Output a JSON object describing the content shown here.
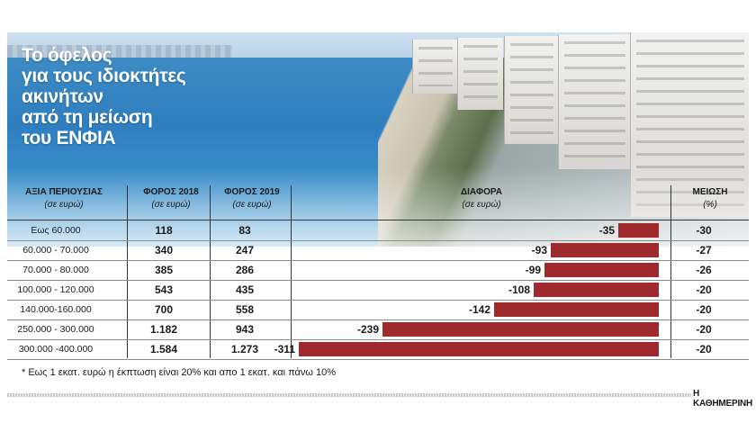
{
  "title_lines": [
    "Το όφελος",
    "για τους ιδιοκτήτες",
    "ακινήτων",
    "από τη μείωση",
    "του ΕΝΦΙΑ"
  ],
  "columns": {
    "value": {
      "label": "ΑΞΙΑ ΠΕΡΙΟΥΣΙΑΣ",
      "unit": "(σε ευρώ)"
    },
    "tax2018": {
      "label": "ΦΟΡΟΣ 2018",
      "unit": "(σε ευρώ)"
    },
    "tax2019": {
      "label": "ΦΟΡΟΣ 2019",
      "unit": "(σε ευρώ)"
    },
    "difference": {
      "label": "ΔΙΑΦΟΡΑ",
      "unit": "(σε ευρώ)"
    },
    "reduction": {
      "label": "ΜΕΙΩΣΗ",
      "unit": "(%)"
    }
  },
  "bar_color": "#9e2a2e",
  "chart_data": {
    "type": "table",
    "categories": [
      "Εως 60.000",
      "60.000 - 70.000",
      "70.000 - 80.000",
      "100.000 - 120.000",
      "140.000-160.000",
      "250.000 - 300.000",
      "300.000 -400.000"
    ],
    "tax2018": [
      "118",
      "340",
      "385",
      "543",
      "700",
      "1.182",
      "1.584"
    ],
    "tax2019": [
      "83",
      "247",
      "286",
      "435",
      "558",
      "943",
      "1.273"
    ],
    "difference": [
      -35,
      -93,
      -99,
      -108,
      -142,
      -239,
      -311
    ],
    "reduction": [
      "-30",
      "-27",
      "-26",
      "-20",
      "-20",
      "-20",
      "-20"
    ]
  },
  "footnote": "* Εως 1 εκατ. ευρώ η έκπτωση είναι 20% και απο 1 εκατ. και πάνω 10%",
  "source": "Η ΚΑΘΗΜΕΡΙΝΗ"
}
